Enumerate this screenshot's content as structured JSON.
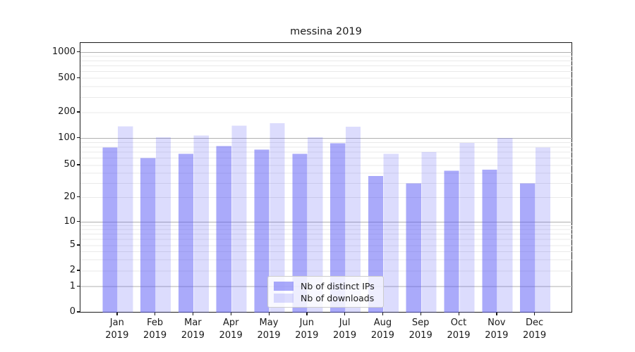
{
  "chart_data": {
    "type": "bar",
    "title": "messina 2019",
    "categories": [
      "Jan",
      "Feb",
      "Mar",
      "Apr",
      "May",
      "Jun",
      "Jul",
      "Aug",
      "Sep",
      "Oct",
      "Nov",
      "Dec"
    ],
    "category_year": "2019",
    "series": [
      {
        "name": "Nb of distinct IPs",
        "color": "rgba(88,88,245,0.51)",
        "values": [
          79,
          60,
          67,
          82,
          75,
          67,
          88,
          37,
          30,
          43,
          44,
          30
        ]
      },
      {
        "name": "Nb of downloads",
        "color": "rgba(88,88,245,0.21)",
        "values": [
          138,
          103,
          108,
          140,
          150,
          103,
          137,
          67,
          70,
          89,
          101,
          79
        ]
      }
    ],
    "y_axis": {
      "scale": "symlog",
      "tick_labels": [
        "0",
        "1",
        "2",
        "5",
        "10",
        "20",
        "50",
        "100",
        "200",
        "500",
        "1000"
      ],
      "tick_values": [
        0,
        1,
        2,
        5,
        10,
        20,
        50,
        100,
        200,
        500,
        1000
      ]
    },
    "grid": {
      "enabled": true,
      "major_color": "#b0b0b0",
      "minor_color": "#e9e9e9"
    },
    "legend": {
      "position": "lower-center"
    },
    "colors": {
      "background": "#ffffff",
      "text": "#1a1a1a",
      "spine": "#1b1b1b"
    }
  }
}
